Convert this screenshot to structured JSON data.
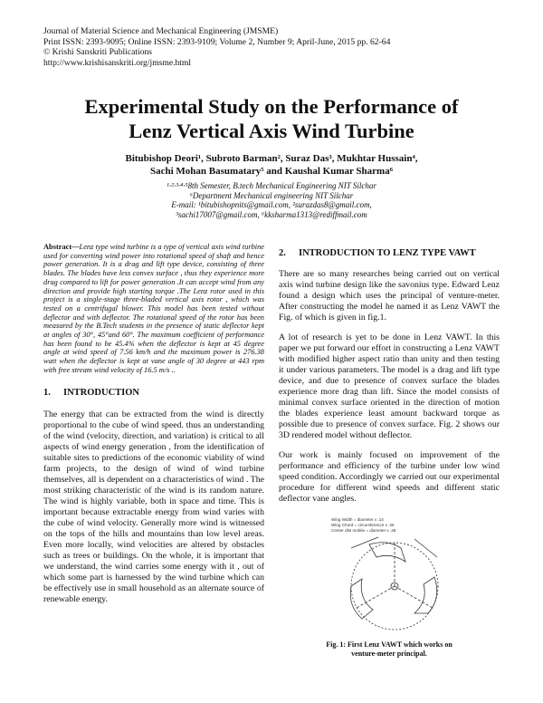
{
  "header": {
    "journal": "Journal of Material Science and Mechanical Engineering (JMSME)",
    "issn": "Print ISSN: 2393-9095; Online ISSN: 2393-9109; Volume 2, Number 9; April-June, 2015 pp. 62-64",
    "publisher": "© Krishi Sanskriti Publications",
    "url": "http://www.krishisanskriti.org/jmsme.html"
  },
  "title_lines": [
    "Experimental Study on the Performance of",
    "Lenz Vertical Axis Wind Turbine"
  ],
  "author_lines": [
    "Bitubishop Deori¹, Subroto Barman², Suraz Das³, Mukhtar Hussain⁴,",
    "Sachi Mohan Basumatary⁵ and Kaushal Kumar Sharma⁶"
  ],
  "affiliation_lines": [
    "¹·²·³·⁴·⁵8th Semester, B.tech Mechanical Engineering NIT Silchar",
    "⁶Department Mechanical engineering NIT Silchar",
    "E-mail: ¹bitubishopnits@gmail.com, ²surazdas8@gmail.com,",
    "³sachi17007@gmail.com, ⁶kksharma1313@rediffmail.com"
  ],
  "abstract": {
    "label": "Abstract—",
    "text": "Lenz type wind turbine is a type of vertical axis wind turbine used for converting wind power into rotational speed of shaft and hence power generation. It is a drag and lift type device, consisting of three blades. The blades have less convex surface , thus they experience more drag compared to lift for power generation .It can accept wind from any direction and provide high starting torque .The Lenz rotor used in this project is a single-stage three-bladed vertical axis rotor , which was tested on a centrifugal blower. This model has been tested without deflector and with deflector. The rotational speed of the rotor has been measured by the B.Tech students in the presence of static deflector kept at angles of 30°, 45°and 60°. The maximum coefficient of performance has been found to be 45.4% when the deflector is kept at 45 degree angle at wind speed of 7.56 km/h and the maximum power is 276.38 watt when the deflector is kept at vane angle of 30 degree at 443 rpm with free stream wind velocity of 16.5 m/s .."
  },
  "sections": [
    {
      "number": "1.",
      "heading": "INTRODUCTION",
      "paragraphs": [
        "The energy that can be extracted from the wind is directly proportional to the cube of wind speed. thus an understanding of the wind (velocity, direction, and variation) is critical to all aspects of wind energy generation , from the identification of suitable sites to predictions of the economic viability of wind farm projects, to the design of wind of wind turbine themselves, all is dependent on a characteristics of wind . The most striking characteristic of the wind is its random nature. The wind is highly variable, both in space and time. This is important because extractable energy from wind varies with the cube of wind velocity. Generally more wind is witnessed on the tops of the hills and mountains than low level areas. Even more locally, wind velocities are altered by obstacles such as trees or buildings. On the whole, it is important that we understand, the wind carries some energy with it , out of which some part is harnessed by the wind turbine which can be effectively use in small household as an alternate source of renewable energy."
      ]
    },
    {
      "number": "2.",
      "heading": "INTRODUCTION TO LENZ TYPE VAWT",
      "paragraphs": [
        "There are so many researches being carried out on vertical axis wind turbine design like the savonius type. Edward Lenz found a design which uses the principal of venture-meter. After constructing the model he named it as Lenz VAWT the Fig. of which is given in fig.1.",
        "A lot of research is yet to be done in Lenz VAWT. In this paper we put forward our effort in constructing a Lenz VAWT with modified higher aspect ratio than unity and then testing it under various parameters. The model is a drag and lift type device, and due to presence of convex surface the blades experience more drag than lift. Since the model consists of minimal convex surface oriented in the direction of motion the blades experience least amount backward torque as possible due to presence of convex surface. Fig. 2 shows our 3D rendered model without deflector.",
        "Our work is mainly focused on improvement of the performance and efficiency of the turbine under low wind speed condition. Accordingly we carried out our experimental procedure for different wind speeds and different static deflector vane angles."
      ]
    }
  ],
  "figure": {
    "labels": [
      "Wing Width = diameter x .14",
      "Wing Chord = circumference x .25",
      "Center dist mobile = diameter x .28"
    ],
    "caption": "Fig. 1: First Lenz VAWT which works on venture-meter principal."
  }
}
